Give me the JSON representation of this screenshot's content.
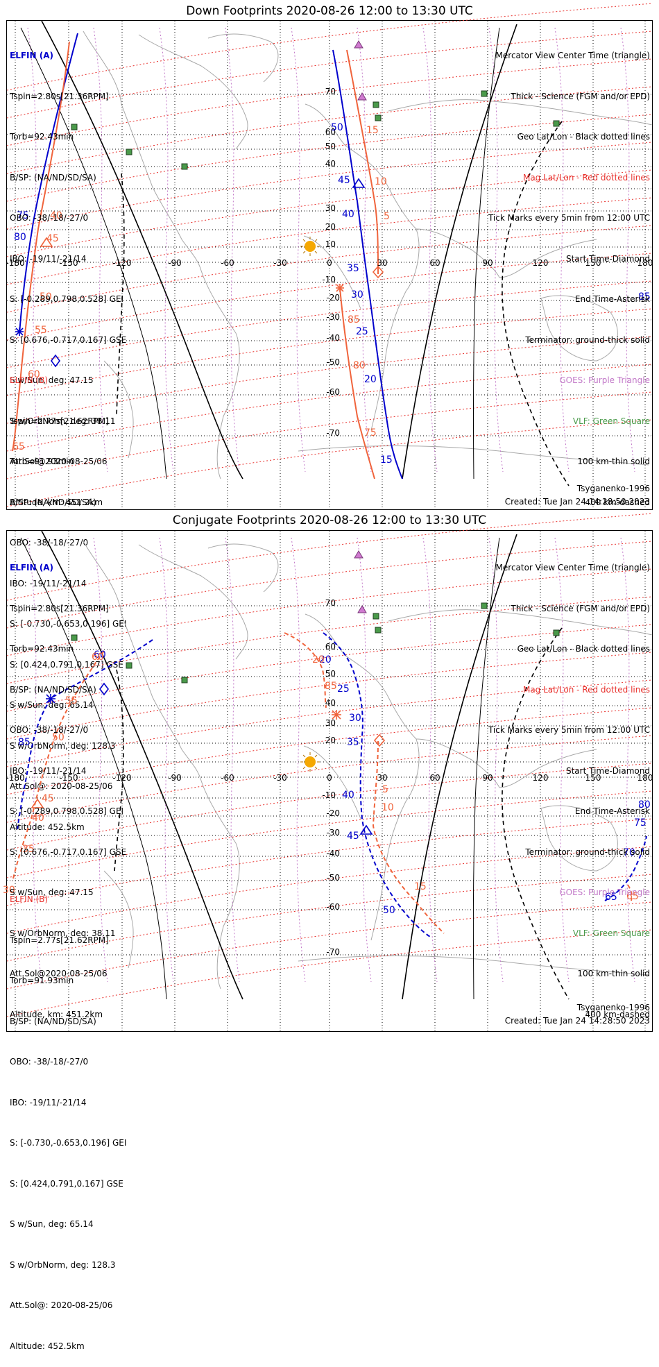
{
  "colors": {
    "blue": "#0000cc",
    "salmon": "#f0643c",
    "red": "#e8302c",
    "violet": "#c278c8",
    "green": "#4a9a4a",
    "sun": "#f5a800",
    "coast": "#a8a8a8"
  },
  "down": {
    "title": "Down Footprints 2020-08-26 12:00 to 13:30 UTC",
    "elfin_a": {
      "header": "ELFIN (A)",
      "lines": [
        "Tspin=2.80s[21.36RPM]",
        "Torb=92.43min",
        "B/SP: (NA/ND/SD/SA)",
        "OBO: -38/-18/-27/0",
        "IBO: -19/11/-21/14",
        "S: [-0.289,0.798,0.528] GEI",
        "S: [0.676,-0.717,0.167] GSE",
        "S w/Sun, deg: 47.15",
        "S w/OrbNorm, deg: 38.11",
        "Att.Sol@2020-08-25/06",
        "Altitude, km: 451.2km"
      ]
    },
    "elfin_b": {
      "header": "ELFIN (B)",
      "lines": [
        "Tspin=2.77s[21.62RPM]",
        "Torb=91.93min",
        "B/SP: (NA/ND/SD/SA)",
        "OBO: -38/-18/-27/0",
        "IBO: -19/11/-21/14",
        "S: [-0.730,-0.653,0.196] GEI",
        "S: [0.424,0.791,0.167] GSE",
        "S w/Sun, deg: 65.14",
        "S w/OrbNorm, deg: 128.3",
        "Att.Sol@: 2020-08-25/06",
        "Altitude: 452.5km"
      ]
    },
    "legend": [
      {
        "text": "Mercator View Center Time (triangle)",
        "color": "black"
      },
      {
        "text": "Thick - Science (FGM and/or EPD)",
        "color": "black"
      },
      {
        "text": "Geo Lat/Lon - Black dotted lines",
        "color": "black"
      },
      {
        "text": "Mag Lat/Lon - Red dotted lines",
        "color": "red"
      },
      {
        "text": "Tick Marks every 5min from 12:00 UTC",
        "color": "black"
      },
      {
        "text": "Start Time-Diamond",
        "color": "black"
      },
      {
        "text": "End Time-Asterisk",
        "color": "black"
      },
      {
        "text": "Terminator: ground-thick solid",
        "color": "black"
      },
      {
        "text": "GOES: Purple Triangle",
        "color": "violet"
      },
      {
        "text": "VLF: Green Square",
        "color": "green"
      },
      {
        "text": "100 km-thin solid",
        "color": "black"
      },
      {
        "text": "400 km-dashed",
        "color": "black"
      }
    ],
    "model": "Tsyganenko-1996",
    "created": "Created: Tue Jan 24 14:28:50 2023",
    "lon_ticks": [
      "-180",
      "-150",
      "-120",
      "-90",
      "-60",
      "-30",
      "0",
      "30",
      "60",
      "90",
      "120",
      "150",
      "180"
    ],
    "lat_ticks": [
      "70",
      "60",
      "50",
      "40",
      "30",
      "20",
      "10",
      "0",
      "-10",
      "-20",
      "-30",
      "-40",
      "-50",
      "-60",
      "-70"
    ],
    "track_a_labels": [
      "15",
      "20",
      "25",
      "30",
      "35",
      "40",
      "45",
      "50",
      "80",
      "75",
      "85"
    ],
    "track_b_labels": [
      "5",
      "10",
      "15",
      "85",
      "80",
      "75",
      "40",
      "45",
      "50",
      "55",
      "60",
      "65"
    ]
  },
  "conjugate": {
    "title": "Conjugate Footprints 2020-08-26 12:00 to 13:30 UTC",
    "elfin_a": {
      "header": "ELFIN (A)",
      "lines": [
        "Tspin=2.80s[21.36RPM]",
        "Torb=92.43min",
        "B/SP: (NA/ND/SD/SA)",
        "OBO: -38/-18/-27/0",
        "IBO: -19/11/-21/14",
        "S: [-0.289,0.798,0.528] GEI",
        "S: [0.676,-0.717,0.167] GSE",
        "S w/Sun, deg: 47.15",
        "S w/OrbNorm, deg: 38.11",
        "Att.Sol@2020-08-25/06",
        "Altitude, km: 451.2km"
      ]
    },
    "elfin_b": {
      "header": "ELFIN (B)",
      "lines": [
        "Tspin=2.77s[21.62RPM]",
        "Torb=91.93min",
        "B/SP: (NA/ND/SD/SA)",
        "OBO: -38/-18/-27/0",
        "IBO: -19/11/-21/14",
        "S: [-0.730,-0.653,0.196] GEI",
        "S: [0.424,0.791,0.167] GSE",
        "S w/Sun, deg: 65.14",
        "S w/OrbNorm, deg: 128.3",
        "Att.Sol@: 2020-08-25/06",
        "Altitude: 452.5km"
      ]
    },
    "legend": [
      {
        "text": "Mercator View Center Time (triangle)",
        "color": "black"
      },
      {
        "text": "Thick - Science (FGM and/or EPD)",
        "color": "black"
      },
      {
        "text": "Geo Lat/Lon - Black dotted lines",
        "color": "black"
      },
      {
        "text": "Mag Lat/Lon - Red dotted lines",
        "color": "red"
      },
      {
        "text": "Tick Marks every 5min from 12:00 UTC",
        "color": "black"
      },
      {
        "text": "Start Time-Diamond",
        "color": "black"
      },
      {
        "text": "End Time-Asterisk",
        "color": "black"
      },
      {
        "text": "Terminator: ground-thick solid",
        "color": "black"
      },
      {
        "text": "GOES: Purple Triangle",
        "color": "violet"
      },
      {
        "text": "VLF: Green Square",
        "color": "green"
      },
      {
        "text": "100 km-thin solid",
        "color": "black"
      },
      {
        "text": "400 km-dashed",
        "color": "black"
      }
    ],
    "model": "Tsyganenko-1996",
    "created": "Created: Tue Jan 24 14:28:50 2023",
    "lon_ticks": [
      "-180",
      "-150",
      "-120",
      "-90",
      "-60",
      "-30",
      "0",
      "30",
      "60",
      "90",
      "120",
      "150",
      "180"
    ],
    "lat_ticks": [
      "70",
      "60",
      "50",
      "40",
      "30",
      "20",
      "10",
      "0",
      "-10",
      "-20",
      "-30",
      "-40",
      "-50",
      "-60",
      "-70"
    ],
    "track_a_labels": [
      "20",
      "25",
      "30",
      "35",
      "40",
      "45",
      "50",
      "60",
      "65",
      "70",
      "75",
      "80",
      "85"
    ],
    "track_b_labels": [
      "5",
      "10",
      "15",
      "20",
      "85",
      "30",
      "35",
      "40",
      "45",
      "50",
      "55",
      "60",
      "65"
    ]
  }
}
